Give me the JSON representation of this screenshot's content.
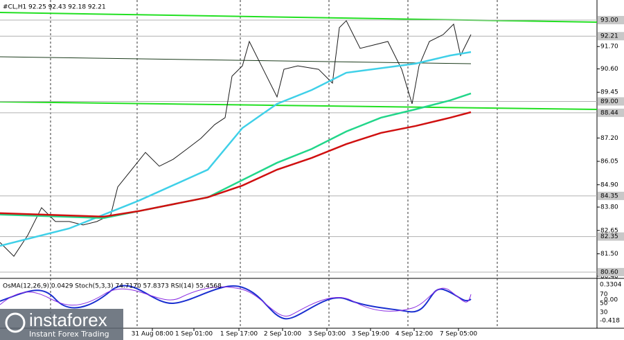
{
  "header": "#CL,H1 92.25 92.43 92.18 92.21",
  "chart_data": {
    "type": "line",
    "xlim": [
      0,
      862
    ],
    "ylim": [
      80.36,
      93.99
    ],
    "xticks": [
      {
        "value": 220,
        "label": "31 Aug 08:00"
      },
      {
        "value": 280,
        "label": "1 Sep 01:00"
      },
      {
        "value": 345,
        "label": "1 Sep 17:00"
      },
      {
        "value": 408,
        "label": "2 Sep 10:00"
      },
      {
        "value": 472,
        "label": "3 Sep 03:00"
      },
      {
        "value": 535,
        "label": "3 Sep 19:00"
      },
      {
        "value": 598,
        "label": "4 Sep 12:00"
      },
      {
        "value": 662,
        "label": "7 Sep 05:00"
      }
    ],
    "yticks": [
      {
        "value": 91.7,
        "label": "91.70"
      },
      {
        "value": 90.6,
        "label": "90.60"
      },
      {
        "value": 89.45,
        "label": "89.45"
      },
      {
        "value": 87.2,
        "label": "87.20"
      },
      {
        "value": 86.05,
        "label": "86.05"
      },
      {
        "value": 84.9,
        "label": "84.90"
      },
      {
        "value": 83.8,
        "label": "83.80"
      },
      {
        "value": 82.65,
        "label": "82.65"
      },
      {
        "value": 81.5,
        "label": "81.50"
      },
      {
        "value": 80.4,
        "label": "80.40"
      }
    ],
    "levels": [
      {
        "value": 93,
        "label": "93.00"
      },
      {
        "value": 92.21,
        "label": "92.21"
      },
      {
        "value": 89,
        "label": "89.00"
      },
      {
        "value": 88.44,
        "label": "88.44"
      },
      {
        "value": 84.35,
        "label": "84.35"
      },
      {
        "value": 82.35,
        "label": "82.35"
      },
      {
        "value": 80.6,
        "label": "80.60"
      }
    ],
    "series": [
      {
        "color": "#1a1a1a",
        "x": [
          0,
          20,
          40,
          60,
          80,
          100,
          120,
          140,
          160,
          170,
          190,
          210,
          230,
          250,
          270,
          290,
          310,
          325,
          335,
          350,
          360,
          380,
          400,
          410,
          430,
          460,
          480,
          490,
          500,
          520,
          540,
          560,
          580,
          595,
          605,
          620,
          640,
          655,
          665,
          680
        ],
        "values": [
          82.06,
          81.38,
          82.41,
          83.77,
          83.09,
          83.09,
          82.92,
          83.09,
          83.43,
          84.79,
          85.64,
          86.49,
          85.81,
          86.15,
          86.66,
          87.18,
          87.86,
          88.2,
          90.24,
          90.75,
          91.95,
          90.58,
          89.22,
          90.58,
          90.75,
          90.58,
          89.9,
          92.63,
          92.97,
          91.61,
          91.78,
          91.95,
          90.58,
          88.88,
          90.75,
          91.95,
          92.29,
          92.8,
          91.26,
          92.29
        ]
      },
      {
        "color": "#3fd0e8",
        "x": [
          0,
          100,
          200,
          300,
          350,
          400,
          450,
          500,
          600,
          650,
          680
        ],
        "values": [
          81.89,
          82.75,
          84.11,
          85.64,
          87.69,
          88.88,
          89.56,
          90.41,
          90.86,
          91.26,
          91.43
        ]
      },
      {
        "color": "#22d68a",
        "x": [
          0,
          150,
          200,
          300,
          350,
          400,
          450,
          500,
          550,
          600,
          650,
          680
        ],
        "values": [
          83.43,
          83.26,
          83.6,
          84.28,
          85.13,
          85.98,
          86.66,
          87.52,
          88.2,
          88.61,
          89.05,
          89.39
        ]
      },
      {
        "color": "#d01010",
        "x": [
          0,
          150,
          200,
          300,
          350,
          400,
          450,
          500,
          550,
          600,
          650,
          680
        ],
        "values": [
          83.5,
          83.33,
          83.6,
          84.28,
          84.86,
          85.64,
          86.22,
          86.9,
          87.45,
          87.79,
          88.2,
          88.47
        ]
      }
    ]
  },
  "indicator": {
    "title": "OsMA(12,26,9) 0.0429  Stoch(5,3,3) 74.7170 57.8373  RSI(14) 55.4568",
    "labels": [
      "0.3304",
      "70",
      "0.00",
      "50",
      "30",
      "-0.418"
    ]
  },
  "logo": {
    "name": "instaforex",
    "tagline": "Instant Forex Trading"
  }
}
